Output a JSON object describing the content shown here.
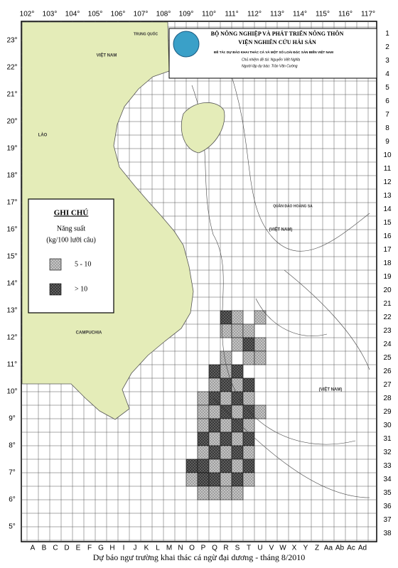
{
  "header": {
    "lines": [
      "BỘ NÔNG NGHIỆP VÀ PHÁT TRIỂN NÔNG THÔN",
      "VIỆN NGHIÊN CỨU HẢI SẢN",
      "ĐỀ TÀI: DỰ BÁO KHAI THÁC CÁ VÀ MỘT SỐ LOÀI ĐẶC SẢN BIỂN VIỆT NAM",
      "Chủ nhiệm đề tài: Nguyễn Viết Nghĩa",
      "Người lập dự báo: Trần Văn Cường"
    ]
  },
  "map": {
    "longitude_labels": [
      "102°",
      "103°",
      "104°",
      "105°",
      "106°",
      "107°",
      "108°",
      "109°",
      "110°",
      "111°",
      "112°",
      "113°",
      "114°",
      "115°",
      "116°",
      "117°"
    ],
    "latitude_labels": [
      "23°",
      "22°",
      "21°",
      "20°",
      "19°",
      "18°",
      "17°",
      "16°",
      "15°",
      "14°",
      "13°",
      "12°",
      "11°",
      "10°",
      "9°",
      "8°",
      "7°",
      "6°",
      "5°"
    ],
    "row_labels": [
      1,
      2,
      3,
      4,
      5,
      6,
      7,
      8,
      9,
      10,
      11,
      12,
      13,
      14,
      15,
      16,
      17,
      18,
      19,
      20,
      21,
      22,
      23,
      24,
      25,
      26,
      27,
      28,
      29,
      30,
      31,
      32,
      33,
      34,
      35,
      36,
      37,
      38
    ],
    "column_labels": [
      "A",
      "B",
      "C",
      "D",
      "E",
      "F",
      "G",
      "H",
      "I",
      "J",
      "K",
      "L",
      "M",
      "N",
      "O",
      "P",
      "Q",
      "R",
      "S",
      "T",
      "U",
      "V",
      "W",
      "X",
      "Y",
      "Z",
      "Aa",
      "Ab",
      "Ac",
      "Ad"
    ],
    "place_labels": [
      "TRUNG QUỐC",
      "VIỆT NAM",
      "LÀO",
      "CAMPUCHIA",
      "QUẦN ĐẢO HOÀNG SA",
      "(VIỆT NAM)",
      "(VIỆT NAM)"
    ]
  },
  "legend": {
    "title": "GHI CHÚ",
    "subtitle": "Năng suất",
    "unit": "(kg/100 lưỡi câu)",
    "items": [
      "5 - 10",
      "> 10"
    ]
  },
  "caption": "Dự báo ngư trường khai thác cá ngừ đại dương - tháng 8/2010"
}
